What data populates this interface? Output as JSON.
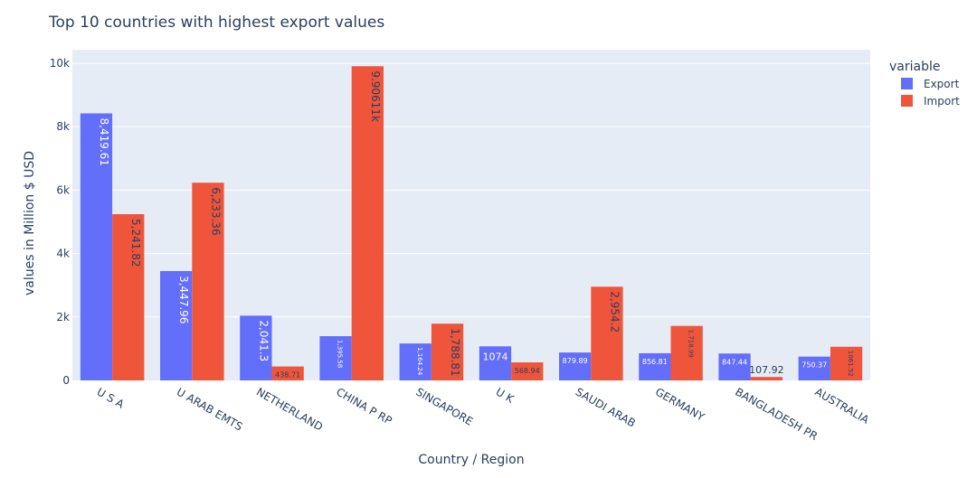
{
  "chart_data": {
    "type": "bar",
    "barmode": "group",
    "title": "Top 10 countries with highest export values",
    "xlabel": "Country / Region",
    "ylabel": "values in Million $ USD",
    "categories": [
      "U S A",
      "U ARAB EMTS",
      "NETHERLAND",
      "CHINA P RP",
      "SINGAPORE",
      "U K",
      "SAUDI ARAB",
      "GERMANY",
      "BANGLADESH PR",
      "AUSTRALIA"
    ],
    "series": [
      {
        "name": "Export",
        "color": "#636efa",
        "values": [
          8419.61,
          3447.96,
          2041.3,
          1395.58,
          1164.24,
          1074,
          879.89,
          856.81,
          847.44,
          750.37
        ],
        "labels": [
          "8,419.61",
          "3,447.96",
          "2,041.3",
          "1,395.58",
          "1,164.24",
          "1074",
          "879.89",
          "856.81",
          "847.44",
          "750.37"
        ]
      },
      {
        "name": "Import",
        "color": "#ef553b",
        "values": [
          5241.82,
          6233.36,
          438.71,
          9906.11,
          1788.81,
          568.94,
          2954.2,
          1718.99,
          107.92,
          1061.52
        ],
        "labels": [
          "5,241.82",
          "6,233.36",
          "438.71",
          "9.90611k",
          "1,788.81",
          "568.94",
          "2,954.2",
          "1,718.99",
          "107.92",
          "1061.52"
        ]
      }
    ],
    "ylim": [
      0,
      10428
    ],
    "yticks": [
      {
        "value": 0,
        "label": "0"
      },
      {
        "value": 2000,
        "label": "2k"
      },
      {
        "value": 4000,
        "label": "4k"
      },
      {
        "value": 6000,
        "label": "6k"
      },
      {
        "value": 8000,
        "label": "8k"
      },
      {
        "value": 10000,
        "label": "10k"
      }
    ],
    "grid": true,
    "legend": {
      "title": "variable",
      "placement": "top-right"
    },
    "colors": {
      "plot_background": "#e5ecf6",
      "grid": "#ffffff",
      "text": "#2a3f5f"
    }
  }
}
